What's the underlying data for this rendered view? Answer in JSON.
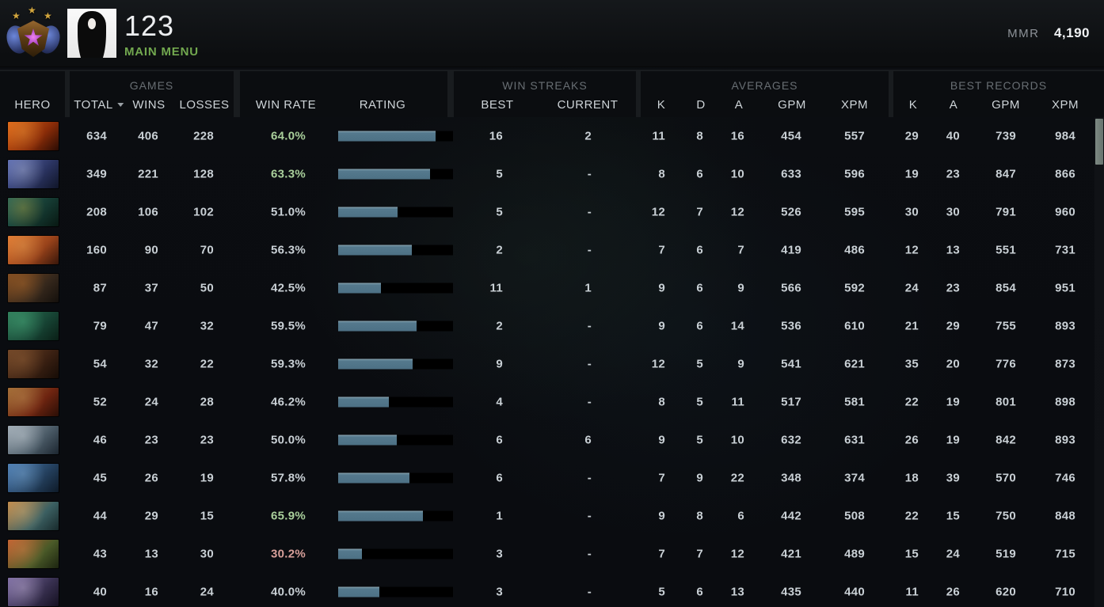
{
  "topbar": {
    "player_name": "123",
    "main_menu_label": "MAIN MENU",
    "mmr_label": "MMR",
    "mmr_value": "4,190"
  },
  "colors": {
    "accent_green": "#72a84f",
    "win_rate_high": "#a9cf9b",
    "win_rate_low": "#d8a09a",
    "rating_bar_fill": "#557a8e",
    "rating_bar_track": "#000000",
    "header_text": "#ced4d8",
    "group_text": "#686e73"
  },
  "table": {
    "groups": {
      "games": "GAMES",
      "win_streaks": "WIN STREAKS",
      "averages": "AVERAGES",
      "best_records": "BEST RECORDS"
    },
    "headers": {
      "hero": "HERO",
      "total": "TOTAL",
      "wins": "WINS",
      "losses": "LOSSES",
      "win_rate": "WIN RATE",
      "rating": "RATING",
      "best": "BEST",
      "current": "CURRENT",
      "k": "K",
      "d": "D",
      "a": "A",
      "gpm": "GPM",
      "xpm": "XPM",
      "best_k": "K",
      "best_a": "A",
      "best_gpm": "GPM",
      "best_xpm": "XPM"
    }
  },
  "rows": [
    {
      "total": 634,
      "wins": 406,
      "losses": 228,
      "win_rate": "64.0%",
      "tone": "high",
      "rating_pct": 85,
      "best": "16",
      "current": "2",
      "k": 11,
      "d": 8,
      "a": 16,
      "gpm": 454,
      "xpm": 557,
      "bk": 29,
      "ba": 40,
      "bgpm": 739,
      "bxpm": 984,
      "icon": [
        "#e06818",
        "#8a2c08",
        "#2a0c04",
        "#f0a040"
      ]
    },
    {
      "total": 349,
      "wins": 221,
      "losses": 128,
      "win_rate": "63.3%",
      "tone": "high",
      "rating_pct": 80,
      "best": "5",
      "current": "-",
      "k": 8,
      "d": 6,
      "a": 10,
      "gpm": 633,
      "xpm": 596,
      "bk": 19,
      "ba": 23,
      "bgpm": 847,
      "bxpm": 866,
      "icon": [
        "#5a6ab0",
        "#2a3360",
        "#101528",
        "#c8d0e8"
      ]
    },
    {
      "total": 208,
      "wins": 106,
      "losses": 102,
      "win_rate": "51.0%",
      "tone": "mid",
      "rating_pct": 52,
      "best": "5",
      "current": "-",
      "k": 12,
      "d": 7,
      "a": 12,
      "gpm": 526,
      "xpm": 595,
      "bk": 30,
      "ba": 30,
      "bgpm": 791,
      "bxpm": 960,
      "icon": [
        "#2a6456",
        "#143830",
        "#081812",
        "#c8b040"
      ]
    },
    {
      "total": 160,
      "wins": 90,
      "losses": 70,
      "win_rate": "56.3%",
      "tone": "mid",
      "rating_pct": 64,
      "best": "2",
      "current": "-",
      "k": 7,
      "d": 6,
      "a": 7,
      "gpm": 419,
      "xpm": 486,
      "bk": 12,
      "ba": 13,
      "bgpm": 551,
      "bxpm": 731,
      "icon": [
        "#e07830",
        "#98421a",
        "#38160a",
        "#f0b060"
      ]
    },
    {
      "total": 87,
      "wins": 37,
      "losses": 50,
      "win_rate": "42.5%",
      "tone": "mid",
      "rating_pct": 37,
      "best": "11",
      "current": "1",
      "k": 9,
      "d": 6,
      "a": 9,
      "gpm": 566,
      "xpm": 592,
      "bk": 24,
      "ba": 23,
      "bgpm": 854,
      "bxpm": 951,
      "icon": [
        "#7c4a20",
        "#36281c",
        "#14100c",
        "#c87830"
      ]
    },
    {
      "total": 79,
      "wins": 47,
      "losses": 32,
      "win_rate": "59.5%",
      "tone": "mid",
      "rating_pct": 68,
      "best": "2",
      "current": "-",
      "k": 9,
      "d": 6,
      "a": 14,
      "gpm": 536,
      "xpm": 610,
      "bk": 21,
      "ba": 29,
      "bgpm": 755,
      "bxpm": 893,
      "icon": [
        "#2e7a58",
        "#174434",
        "#0a1f16",
        "#58c890"
      ]
    },
    {
      "total": 54,
      "wins": 32,
      "losses": 22,
      "win_rate": "59.3%",
      "tone": "mid",
      "rating_pct": 65,
      "best": "9",
      "current": "-",
      "k": 12,
      "d": 5,
      "a": 9,
      "gpm": 541,
      "xpm": 621,
      "bk": 35,
      "ba": 20,
      "bgpm": 776,
      "bxpm": 873,
      "icon": [
        "#6e4426",
        "#3a2012",
        "#160c06",
        "#a87040"
      ]
    },
    {
      "total": 52,
      "wins": 24,
      "losses": 28,
      "win_rate": "46.2%",
      "tone": "mid",
      "rating_pct": 44,
      "best": "4",
      "current": "-",
      "k": 8,
      "d": 5,
      "a": 11,
      "gpm": 517,
      "xpm": 581,
      "bk": 22,
      "ba": 19,
      "bgpm": 801,
      "bxpm": 898,
      "icon": [
        "#a06a34",
        "#6e2410",
        "#2a0e06",
        "#d0a060"
      ]
    },
    {
      "total": 46,
      "wins": 23,
      "losses": 23,
      "win_rate": "50.0%",
      "tone": "mid",
      "rating_pct": 51,
      "best": "6",
      "current": "6",
      "k": 9,
      "d": 5,
      "a": 10,
      "gpm": 632,
      "xpm": 631,
      "bk": 26,
      "ba": 19,
      "bgpm": 842,
      "bxpm": 893,
      "icon": [
        "#9ca8b2",
        "#4a5a66",
        "#1c2630",
        "#e0e8ee"
      ]
    },
    {
      "total": 45,
      "wins": 26,
      "losses": 19,
      "win_rate": "57.8%",
      "tone": "mid",
      "rating_pct": 62,
      "best": "6",
      "current": "-",
      "k": 7,
      "d": 9,
      "a": 22,
      "gpm": 348,
      "xpm": 374,
      "bk": 18,
      "ba": 39,
      "bgpm": 570,
      "bxpm": 746,
      "icon": [
        "#4a7ab0",
        "#24405e",
        "#0e1a28",
        "#90c0e8"
      ]
    },
    {
      "total": 44,
      "wins": 29,
      "losses": 15,
      "win_rate": "65.9%",
      "tone": "high",
      "rating_pct": 74,
      "best": "1",
      "current": "-",
      "k": 9,
      "d": 8,
      "a": 6,
      "gpm": 442,
      "xpm": 508,
      "bk": 22,
      "ba": 15,
      "bgpm": 750,
      "bxpm": 848,
      "icon": [
        "#c08848",
        "#3c6062",
        "#182a2c",
        "#e8c080"
      ]
    },
    {
      "total": 43,
      "wins": 13,
      "losses": 30,
      "win_rate": "30.2%",
      "tone": "low",
      "rating_pct": 21,
      "best": "3",
      "current": "-",
      "k": 7,
      "d": 7,
      "a": 12,
      "gpm": 421,
      "xpm": 489,
      "bk": 15,
      "ba": 24,
      "bgpm": 519,
      "bxpm": 715,
      "icon": [
        "#c06030",
        "#4a5a28",
        "#1c2410",
        "#e89050"
      ]
    },
    {
      "total": 40,
      "wins": 16,
      "losses": 24,
      "win_rate": "40.0%",
      "tone": "mid",
      "rating_pct": 36,
      "best": "3",
      "current": "-",
      "k": 5,
      "d": 6,
      "a": 13,
      "gpm": 435,
      "xpm": 440,
      "bk": 11,
      "ba": 26,
      "bgpm": 620,
      "bxpm": 710,
      "icon": [
        "#7a6aa0",
        "#383050",
        "#141020",
        "#d8c8e8"
      ]
    }
  ]
}
